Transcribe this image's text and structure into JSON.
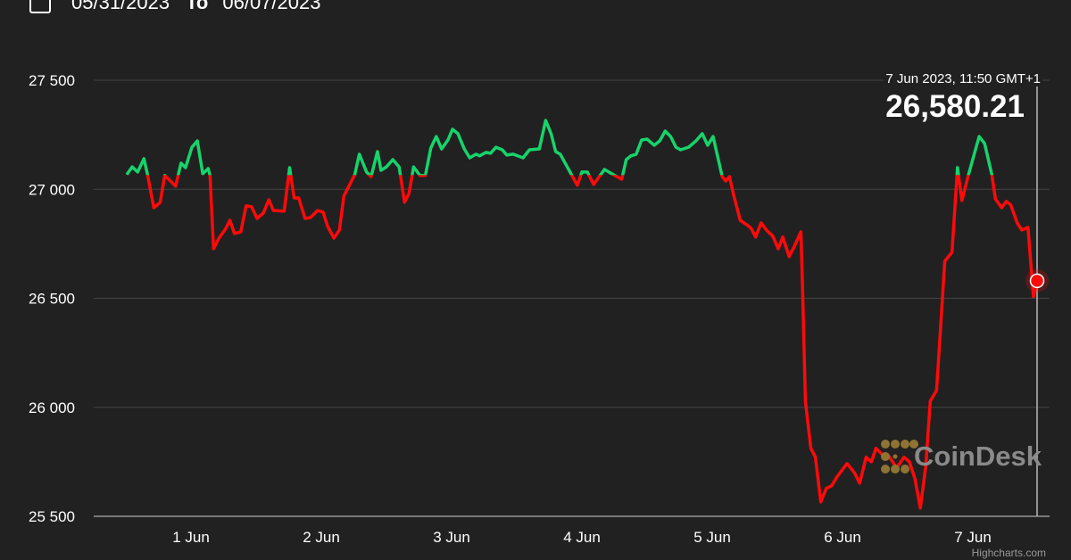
{
  "header": {
    "from_date": "05/31/2023",
    "to_label": "To",
    "to_date": "06/07/2023"
  },
  "tooltip": {
    "date": "7 Jun 2023, 11:50 GMT+1",
    "value": "26,580.21"
  },
  "watermark": "CoinDesk",
  "credit": "Highcharts.com",
  "colors": {
    "background": "#212121",
    "up": "#16d46b",
    "down": "#ff0a0a",
    "grid": "#444444",
    "marker": "#ff0a0a"
  },
  "chart_data": {
    "type": "line",
    "title": "",
    "xlabel": "",
    "ylabel": "",
    "ylim": [
      25500,
      27500
    ],
    "yticks": [
      "27 500",
      "27 000",
      "26 500",
      "26 000",
      "25 500"
    ],
    "ytick_values": [
      27500,
      27000,
      26500,
      26000,
      25500
    ],
    "xticks": [
      "1 Jun",
      "2 Jun",
      "3 Jun",
      "4 Jun",
      "5 Jun",
      "6 Jun",
      "7 Jun"
    ],
    "xtick_values": [
      "2023-06-01T00:00",
      "2023-06-02T00:00",
      "2023-06-03T00:00",
      "2023-06-04T00:00",
      "2023-06-05T00:00",
      "2023-06-06T00:00",
      "2023-06-07T00:00"
    ],
    "grid": true,
    "color_zones": {
      "threshold": 27065,
      "above": "#16d46b",
      "below": "#ff0a0a"
    },
    "series": [
      {
        "points": [
          [
            "2023-05-31T12:10",
            27067
          ],
          [
            "2023-05-31T13:10",
            27103
          ],
          [
            "2023-05-31T14:10",
            27079
          ],
          [
            "2023-05-31T15:20",
            27140
          ],
          [
            "2023-05-31T16:00",
            27067
          ],
          [
            "2023-05-31T17:10",
            26915
          ],
          [
            "2023-05-31T18:20",
            26940
          ],
          [
            "2023-05-31T19:10",
            27063
          ],
          [
            "2023-05-31T21:10",
            27014
          ],
          [
            "2023-05-31T22:10",
            27120
          ],
          [
            "2023-05-31T23:00",
            27099
          ],
          [
            "2023-06-01T00:10",
            27193
          ],
          [
            "2023-06-01T01:10",
            27222
          ],
          [
            "2023-06-01T02:10",
            27071
          ],
          [
            "2023-06-01T03:10",
            27095
          ],
          [
            "2023-06-01T03:30",
            27063
          ],
          [
            "2023-06-01T04:10",
            26727
          ],
          [
            "2023-06-01T05:10",
            26776
          ],
          [
            "2023-06-01T06:20",
            26817
          ],
          [
            "2023-06-01T07:10",
            26858
          ],
          [
            "2023-06-01T08:00",
            26797
          ],
          [
            "2023-06-01T09:10",
            26805
          ],
          [
            "2023-06-01T10:10",
            26924
          ],
          [
            "2023-06-01T11:10",
            26920
          ],
          [
            "2023-06-01T12:10",
            26866
          ],
          [
            "2023-06-01T13:20",
            26891
          ],
          [
            "2023-06-01T14:20",
            26952
          ],
          [
            "2023-06-01T15:10",
            26903
          ],
          [
            "2023-06-01T17:10",
            26899
          ],
          [
            "2023-06-01T18:10",
            27099
          ],
          [
            "2023-06-01T19:00",
            26960
          ],
          [
            "2023-06-01T19:50",
            26960
          ],
          [
            "2023-06-01T21:00",
            26866
          ],
          [
            "2023-06-01T22:00",
            26870
          ],
          [
            "2023-06-01T23:20",
            26903
          ],
          [
            "2023-06-02T00:20",
            26895
          ],
          [
            "2023-06-02T01:10",
            26830
          ],
          [
            "2023-06-02T02:20",
            26776
          ],
          [
            "2023-06-02T03:20",
            26813
          ],
          [
            "2023-06-02T04:10",
            26969
          ],
          [
            "2023-06-02T06:10",
            27067
          ],
          [
            "2023-06-02T07:00",
            27161
          ],
          [
            "2023-06-02T08:20",
            27079
          ],
          [
            "2023-06-02T09:10",
            27058
          ],
          [
            "2023-06-02T10:20",
            27173
          ],
          [
            "2023-06-02T11:00",
            27087
          ],
          [
            "2023-06-02T12:00",
            27103
          ],
          [
            "2023-06-02T13:10",
            27136
          ],
          [
            "2023-06-02T14:20",
            27103
          ],
          [
            "2023-06-02T15:20",
            26940
          ],
          [
            "2023-06-02T16:10",
            26981
          ],
          [
            "2023-06-02T17:00",
            27103
          ],
          [
            "2023-06-02T18:10",
            27063
          ],
          [
            "2023-06-02T19:10",
            27063
          ],
          [
            "2023-06-02T20:10",
            27189
          ],
          [
            "2023-06-02T21:10",
            27242
          ],
          [
            "2023-06-02T22:10",
            27185
          ],
          [
            "2023-06-02T23:20",
            27226
          ],
          [
            "2023-06-03T00:10",
            27275
          ],
          [
            "2023-06-03T01:10",
            27255
          ],
          [
            "2023-06-03T02:20",
            27185
          ],
          [
            "2023-06-03T03:20",
            27144
          ],
          [
            "2023-06-03T04:30",
            27161
          ],
          [
            "2023-06-03T05:10",
            27153
          ],
          [
            "2023-06-03T06:20",
            27169
          ],
          [
            "2023-06-03T07:10",
            27165
          ],
          [
            "2023-06-03T08:10",
            27193
          ],
          [
            "2023-06-03T09:20",
            27181
          ],
          [
            "2023-06-03T10:10",
            27157
          ],
          [
            "2023-06-03T11:20",
            27161
          ],
          [
            "2023-06-03T13:10",
            27144
          ],
          [
            "2023-06-03T14:20",
            27181
          ],
          [
            "2023-06-03T16:10",
            27185
          ],
          [
            "2023-06-03T17:20",
            27316
          ],
          [
            "2023-06-03T18:20",
            27255
          ],
          [
            "2023-06-03T19:10",
            27173
          ],
          [
            "2023-06-03T20:00",
            27161
          ],
          [
            "2023-06-03T22:00",
            27071
          ],
          [
            "2023-06-03T23:10",
            27018
          ],
          [
            "2023-06-04T00:00",
            27079
          ],
          [
            "2023-06-04T01:00",
            27079
          ],
          [
            "2023-06-04T02:10",
            27022
          ],
          [
            "2023-06-04T04:10",
            27091
          ],
          [
            "2023-06-04T05:30",
            27071
          ],
          [
            "2023-06-04T07:20",
            27046
          ],
          [
            "2023-06-04T08:10",
            27136
          ],
          [
            "2023-06-04T09:00",
            27153
          ],
          [
            "2023-06-04T10:00",
            27161
          ],
          [
            "2023-06-04T11:00",
            27226
          ],
          [
            "2023-06-04T12:00",
            27230
          ],
          [
            "2023-06-04T13:20",
            27202
          ],
          [
            "2023-06-04T14:20",
            27222
          ],
          [
            "2023-06-04T15:20",
            27267
          ],
          [
            "2023-06-04T16:20",
            27242
          ],
          [
            "2023-06-04T17:20",
            27193
          ],
          [
            "2023-06-04T18:10",
            27181
          ],
          [
            "2023-06-04T19:40",
            27193
          ],
          [
            "2023-06-04T21:00",
            27222
          ],
          [
            "2023-06-04T22:10",
            27255
          ],
          [
            "2023-06-04T23:10",
            27202
          ],
          [
            "2023-06-05T00:10",
            27242
          ],
          [
            "2023-06-05T01:50",
            27058
          ],
          [
            "2023-06-05T02:30",
            27038
          ],
          [
            "2023-06-05T03:10",
            27058
          ],
          [
            "2023-06-05T04:00",
            26969
          ],
          [
            "2023-06-05T05:10",
            26858
          ],
          [
            "2023-06-05T06:20",
            26838
          ],
          [
            "2023-06-05T07:10",
            26821
          ],
          [
            "2023-06-05T08:00",
            26781
          ],
          [
            "2023-06-05T09:00",
            26846
          ],
          [
            "2023-06-05T10:00",
            26813
          ],
          [
            "2023-06-05T11:10",
            26785
          ],
          [
            "2023-06-05T12:10",
            26727
          ],
          [
            "2023-06-05T13:00",
            26781
          ],
          [
            "2023-06-05T14:10",
            26691
          ],
          [
            "2023-06-05T15:10",
            26740
          ],
          [
            "2023-06-05T16:20",
            26805
          ],
          [
            "2023-06-05T16:40",
            26519
          ],
          [
            "2023-06-05T17:10",
            26028
          ],
          [
            "2023-06-05T18:10",
            25812
          ],
          [
            "2023-06-05T19:00",
            25771
          ],
          [
            "2023-06-05T20:00",
            25566
          ],
          [
            "2023-06-05T21:00",
            25628
          ],
          [
            "2023-06-05T22:00",
            25640
          ],
          [
            "2023-06-05T23:00",
            25681
          ],
          [
            "2023-06-06T00:50",
            25742
          ],
          [
            "2023-06-06T02:10",
            25701
          ],
          [
            "2023-06-06T03:10",
            25652
          ],
          [
            "2023-06-06T04:20",
            25771
          ],
          [
            "2023-06-06T05:20",
            25750
          ],
          [
            "2023-06-06T06:10",
            25812
          ],
          [
            "2023-06-06T07:20",
            25783
          ],
          [
            "2023-06-06T08:20",
            25783
          ],
          [
            "2023-06-06T10:00",
            25722
          ],
          [
            "2023-06-06T11:20",
            25771
          ],
          [
            "2023-06-06T12:20",
            25750
          ],
          [
            "2023-06-06T13:20",
            25673
          ],
          [
            "2023-06-06T14:20",
            25538
          ],
          [
            "2023-06-06T15:20",
            25730
          ],
          [
            "2023-06-06T16:10",
            26028
          ],
          [
            "2023-06-06T17:20",
            26077
          ],
          [
            "2023-06-06T18:50",
            26670
          ],
          [
            "2023-06-06T20:10",
            26711
          ],
          [
            "2023-06-06T21:10",
            27099
          ],
          [
            "2023-06-06T22:00",
            26948
          ],
          [
            "2023-06-06T23:10",
            27063
          ],
          [
            "2023-06-07T01:10",
            27242
          ],
          [
            "2023-06-07T02:10",
            27210
          ],
          [
            "2023-06-07T03:30",
            27067
          ],
          [
            "2023-06-07T04:10",
            26956
          ],
          [
            "2023-06-07T05:20",
            26915
          ],
          [
            "2023-06-07T06:10",
            26944
          ],
          [
            "2023-06-07T07:00",
            26928
          ],
          [
            "2023-06-07T08:10",
            26846
          ],
          [
            "2023-06-07T09:00",
            26813
          ],
          [
            "2023-06-07T10:10",
            26825
          ],
          [
            "2023-06-07T11:10",
            26507
          ],
          [
            "2023-06-07T11:50",
            26580.21
          ]
        ]
      }
    ],
    "highlighted_point": [
      "2023-06-07T11:50",
      26580.21
    ]
  }
}
